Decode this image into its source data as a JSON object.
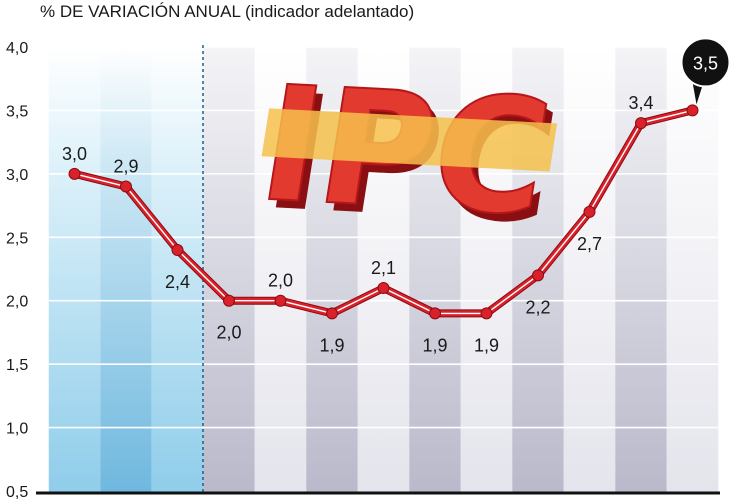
{
  "subtitle": "% DE VARIACIÓN ANUAL (indicador adelantado)",
  "logo_text": "IPC",
  "colors": {
    "line": "#d8212b",
    "highlight_band": "#a9d9ef",
    "band_dark": "#c6c6d4",
    "band_light": "#e9e9ef"
  },
  "chart_data": {
    "type": "line",
    "title": "% DE VARIACIÓN ANUAL (indicador adelantado)",
    "xlabel": "",
    "ylabel": "",
    "ylim": [
      0.5,
      4.0
    ],
    "yticks": [
      "0,5",
      "1,0",
      "1,5",
      "2,0",
      "2,5",
      "3,0",
      "3,5",
      "4,0"
    ],
    "ytick_values": [
      0.5,
      1.0,
      1.5,
      2.0,
      2.5,
      3.0,
      3.5,
      4.0
    ],
    "grid": true,
    "series": [
      {
        "values": [
          3.0,
          2.9,
          2.4,
          2.0,
          2.0,
          1.9,
          2.1,
          1.9,
          1.9,
          2.2,
          2.7,
          3.4,
          3.5
        ],
        "labels": [
          "3,0",
          "2,9",
          "2,4",
          "2,0",
          "2,0",
          "1,9",
          "2,1",
          "1,9",
          "1,9",
          "2,2",
          "2,7",
          "3,4",
          "3,5"
        ]
      }
    ],
    "highlighted_last_value": "3,5"
  }
}
